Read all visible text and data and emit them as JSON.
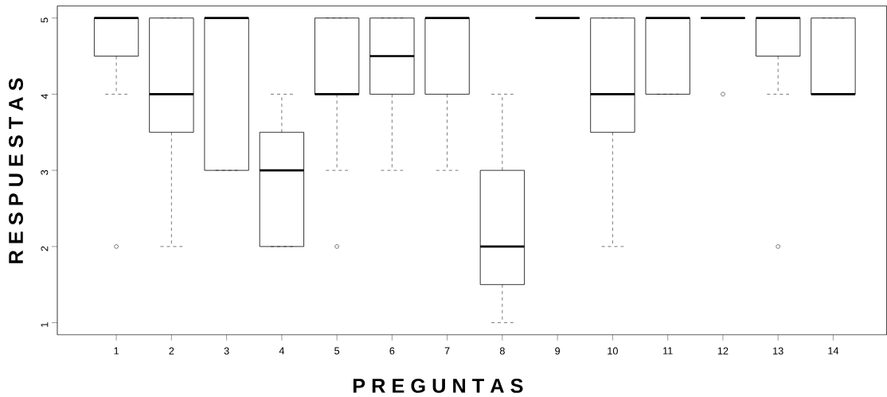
{
  "chart_data": {
    "type": "box",
    "xlabel": "P R E G U N T A S",
    "ylabel": "R E S P U E S T A S",
    "categories": [
      "1",
      "2",
      "3",
      "4",
      "5",
      "6",
      "7",
      "8",
      "9",
      "10",
      "11",
      "12",
      "13",
      "14"
    ],
    "boxes": [
      {
        "low": 4,
        "q1": 4.5,
        "median": 5,
        "q3": 5,
        "high": 5,
        "outliers": [
          2
        ]
      },
      {
        "low": 2,
        "q1": 3.5,
        "median": 4,
        "q3": 5,
        "high": 5
      },
      {
        "low": 3,
        "q1": 3,
        "median": 5,
        "q3": 5,
        "high": 5
      },
      {
        "low": 2,
        "q1": 2,
        "median": 3,
        "q3": 3.5,
        "high": 4
      },
      {
        "low": 3,
        "q1": 4,
        "median": 4,
        "q3": 5,
        "high": 5,
        "outliers": [
          2
        ]
      },
      {
        "low": 3,
        "q1": 4,
        "median": 4.5,
        "q3": 5,
        "high": 5
      },
      {
        "low": 3,
        "q1": 4,
        "median": 5,
        "q3": 5,
        "high": 5
      },
      {
        "low": 1,
        "q1": 1.5,
        "median": 2,
        "q3": 3,
        "high": 4
      },
      {
        "low": 5,
        "q1": 5,
        "median": 5,
        "q3": 5,
        "high": 5
      },
      {
        "low": 2,
        "q1": 3.5,
        "median": 4,
        "q3": 5,
        "high": 5
      },
      {
        "low": 4,
        "q1": 4,
        "median": 5,
        "q3": 5,
        "high": 5
      },
      {
        "low": 5,
        "q1": 5,
        "median": 5,
        "q3": 5,
        "high": 5,
        "outliers": [
          4
        ]
      },
      {
        "low": 4,
        "q1": 4.5,
        "median": 5,
        "q3": 5,
        "high": 5,
        "outliers": [
          2
        ]
      },
      {
        "low": 4,
        "q1": 4,
        "median": 4,
        "q3": 5,
        "high": 5
      }
    ],
    "ylim": [
      0.84,
      5.16
    ],
    "yticks": [
      1,
      2,
      3,
      4,
      5
    ],
    "marker": "circle"
  }
}
